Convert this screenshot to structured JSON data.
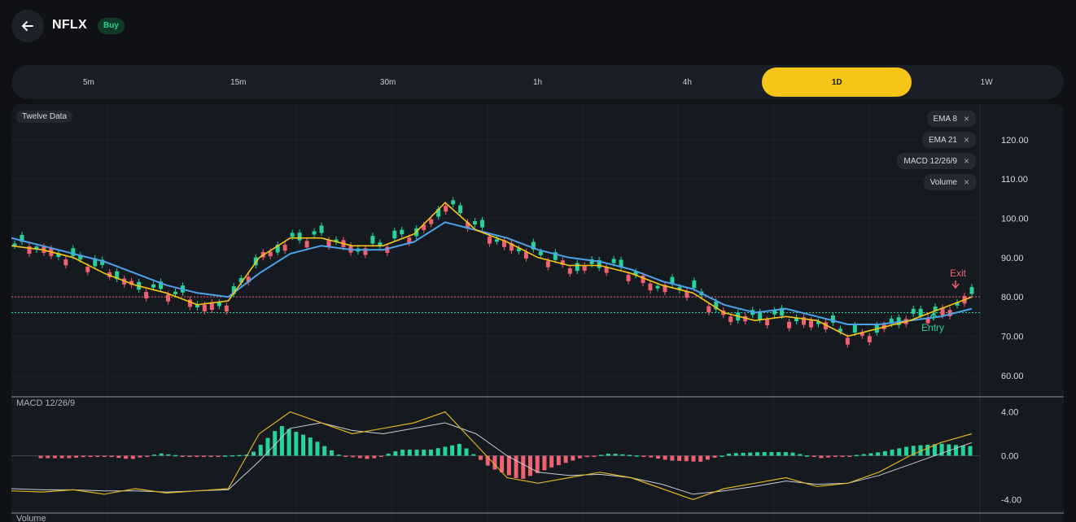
{
  "header": {
    "back_label": "Back",
    "symbol": "NFLX",
    "badge": "Buy"
  },
  "timeframes": [
    {
      "label": "5m",
      "active": false
    },
    {
      "label": "15m",
      "active": false
    },
    {
      "label": "30m",
      "active": false
    },
    {
      "label": "1h",
      "active": false
    },
    {
      "label": "4h",
      "active": false
    },
    {
      "label": "1D",
      "active": true
    },
    {
      "label": "1W",
      "active": false
    }
  ],
  "chart": {
    "source": "Twelve Data",
    "indicators": [
      "EMA 8",
      "EMA 21",
      "MACD 12/26/9",
      "Volume"
    ],
    "price_ticks": [
      "120.00",
      "110.00",
      "100.00",
      "90.00",
      "80.00",
      "70.00",
      "60.00"
    ],
    "macd_label": "MACD 12/26/9",
    "macd_ticks": [
      "4.00",
      "0.00",
      "-4.00"
    ],
    "volume_label": "Volume",
    "exit_label": "Exit",
    "entry_label": "Entry",
    "colors": {
      "up": "#26d39a",
      "down": "#f0626f",
      "ema8": "#f5c518",
      "ema21": "#4ea2ec",
      "macd": "#e3b21c",
      "signal": "#c8ccd4",
      "active": "#f5c518"
    }
  },
  "chart_data": {
    "type": "line",
    "series": [
      {
        "name": "EMA 8",
        "values": [
          93,
          92,
          90,
          86,
          83,
          81,
          78,
          79,
          90,
          95,
          95,
          93,
          93,
          96,
          104,
          97,
          94,
          90,
          88,
          88,
          86,
          83,
          81,
          76,
          74,
          75,
          74,
          70,
          72,
          74,
          77,
          80
        ]
      },
      {
        "name": "EMA 21",
        "values": [
          95,
          93,
          91,
          89,
          86,
          83,
          81,
          80,
          86,
          91,
          93,
          92,
          92,
          94,
          99,
          97,
          95,
          92,
          90,
          89,
          87,
          84,
          82,
          78,
          76,
          77,
          75,
          73,
          73,
          74,
          75,
          77
        ]
      }
    ],
    "entry_price": 76,
    "exit_price": 80,
    "ylim": [
      55,
      127
    ],
    "macd": {
      "ylim": [
        -5,
        5
      ],
      "macd": [
        -3.2,
        -3.3,
        -3.1,
        -3.5,
        -3.0,
        -3.4,
        -3.2,
        -3.0,
        2.0,
        4.0,
        3.0,
        2.0,
        2.5,
        3.0,
        4.0,
        1.0,
        -2.0,
        -2.5,
        -2.0,
        -1.5,
        -2.0,
        -3.0,
        -4.0,
        -3.0,
        -2.5,
        -2.0,
        -2.8,
        -2.5,
        -1.5,
        0.0,
        1.2,
        2.0
      ],
      "signal": [
        -3.0,
        -3.1,
        -3.1,
        -3.2,
        -3.2,
        -3.3,
        -3.2,
        -3.1,
        -0.5,
        2.5,
        3.0,
        2.3,
        2.0,
        2.5,
        3.0,
        2.0,
        0.0,
        -1.5,
        -1.8,
        -1.7,
        -2.0,
        -2.6,
        -3.5,
        -3.2,
        -2.8,
        -2.3,
        -2.6,
        -2.5,
        -1.8,
        -0.8,
        0.2,
        1.2
      ]
    }
  }
}
